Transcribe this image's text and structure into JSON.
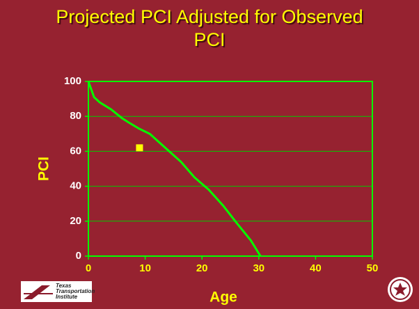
{
  "chart_data": {
    "type": "line",
    "title": "Projected PCI Adjusted for Observed PCI",
    "xlabel": "Age",
    "ylabel": "PCI",
    "xlim": [
      0,
      50
    ],
    "xticks": [
      0,
      10,
      20,
      30,
      40,
      50
    ],
    "ylim": [
      0,
      100
    ],
    "yticks": [
      0,
      20,
      40,
      60,
      80,
      100
    ],
    "grid": true,
    "series": [
      {
        "type": "line",
        "color": "#00ff00",
        "x": [
          0,
          1,
          2,
          4,
          5.9,
          7.1,
          8.9,
          10.8,
          13.2,
          16.3,
          18.7,
          21.2,
          23.7,
          26.1,
          28.6,
          30.3
        ],
        "values": [
          100,
          91,
          88,
          84,
          79,
          76.5,
          73,
          70,
          63,
          54,
          45,
          38,
          29,
          19,
          9,
          0
        ]
      },
      {
        "type": "scatter",
        "color": "#ffff00",
        "x": [
          9
        ],
        "values": [
          62
        ]
      }
    ]
  },
  "logo": {
    "lines": [
      "Texas",
      "Transportation",
      "Institute"
    ]
  }
}
